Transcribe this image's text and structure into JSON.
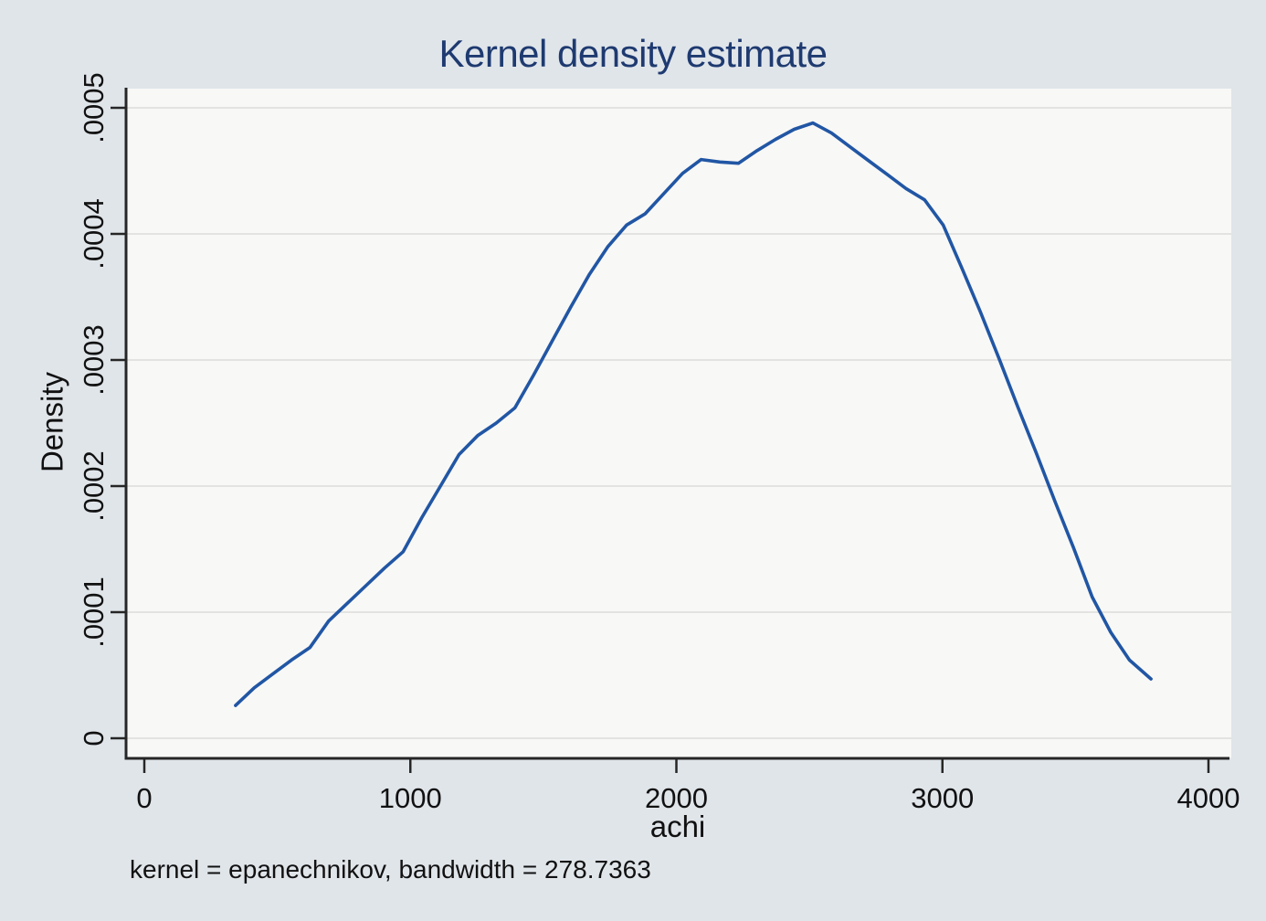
{
  "colors": {
    "background": "#e0e5ea",
    "plot_background": "#f8f8f6",
    "gridline": "#e3e3e1",
    "axis": "#262626",
    "tick_text": "#111111",
    "title_text": "#1e3a70",
    "line": "#2156a4"
  },
  "chart_data": {
    "type": "line",
    "title": "Kernel density estimate",
    "xlabel": "achi",
    "ylabel": "Density",
    "note": "kernel = epanechnikov, bandwidth = 278.7363",
    "grid": true,
    "legend_position": "none",
    "x_tick_values": [
      0,
      1000,
      2000,
      3000,
      4000
    ],
    "x_tick_labels": [
      "0",
      "1000",
      "2000",
      "3000",
      "4000"
    ],
    "y_tick_values": [
      0,
      0.0001,
      0.0002,
      0.0003,
      0.0004,
      0.0005
    ],
    "y_tick_labels": [
      "0",
      ".0001",
      ".0002",
      ".0003",
      ".0004",
      ".0005"
    ],
    "xlim": [
      -72,
      4086
    ],
    "ylim": [
      -1.5e-05,
      0.000515
    ],
    "series": [
      {
        "name": "kdensity achi",
        "x": [
          343,
          413,
          483,
          553,
          623,
          693,
          763,
          833,
          903,
          973,
          1043,
          1113,
          1183,
          1253,
          1323,
          1393,
          1463,
          1533,
          1603,
          1673,
          1743,
          1813,
          1883,
          1953,
          2023,
          2093,
          2163,
          2233,
          2303,
          2373,
          2443,
          2513,
          2583,
          2653,
          2723,
          2793,
          2863,
          2933,
          3003,
          3073,
          3143,
          3213,
          3283,
          3353,
          3423,
          3493,
          3563,
          3633,
          3703,
          3784
        ],
        "y": [
          2.6e-05,
          4e-05,
          5.1e-05,
          6.2e-05,
          7.2e-05,
          9.3e-05,
          0.000107,
          0.000121,
          0.000135,
          0.000148,
          0.000175,
          0.0002,
          0.000225,
          0.00024,
          0.00025,
          0.000262,
          0.000288,
          0.000315,
          0.000342,
          0.000368,
          0.00039,
          0.000407,
          0.000416,
          0.000432,
          0.000448,
          0.000459,
          0.000457,
          0.000456,
          0.000466,
          0.000475,
          0.000483,
          0.000488,
          0.00048,
          0.000469,
          0.000458,
          0.000447,
          0.000436,
          0.000427,
          0.000407,
          0.000373,
          0.000338,
          0.000301,
          0.000263,
          0.000226,
          0.000188,
          0.000151,
          0.000112,
          8.4e-05,
          6.2e-05,
          4.7e-05
        ]
      }
    ]
  }
}
